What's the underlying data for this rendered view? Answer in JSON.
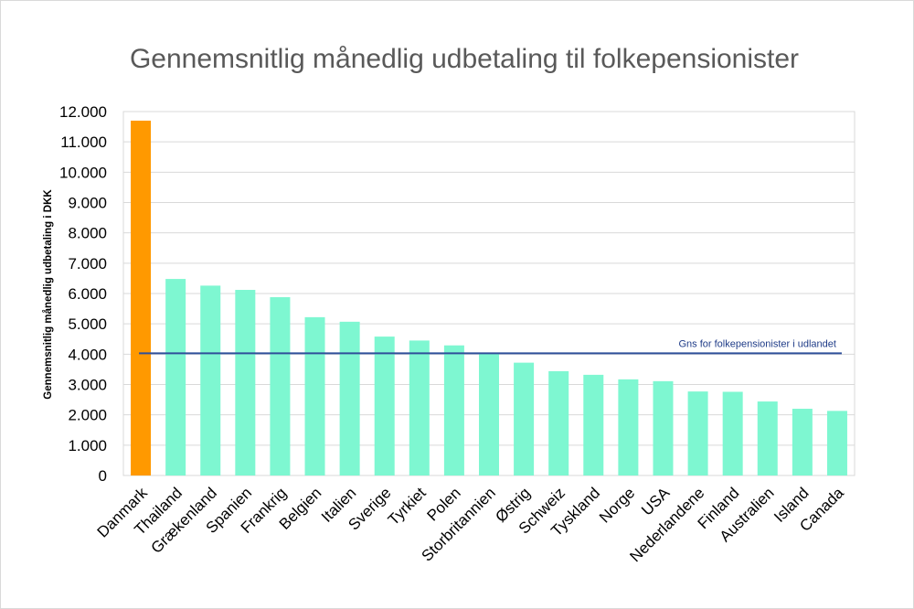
{
  "chart_data": {
    "type": "bar",
    "title": "Gennemsnitlig månedlig udbetaling til folkepensionister",
    "xlabel": "",
    "ylabel": "Gennemsnitlig månedlig udbetaling i DKK",
    "ylim": [
      0,
      12000
    ],
    "yticks": [
      0,
      1000,
      2000,
      3000,
      4000,
      5000,
      6000,
      7000,
      8000,
      9000,
      10000,
      11000,
      12000
    ],
    "ytick_labels": [
      "0",
      "1.000",
      "2.000",
      "3.000",
      "4.000",
      "5.000",
      "6.000",
      "7.000",
      "8.000",
      "9.000",
      "10.000",
      "11.000",
      "12.000"
    ],
    "grid": true,
    "categories": [
      "Danmark",
      "Thailand",
      "Grækenland",
      "Spanien",
      "Frankrig",
      "Belgien",
      "Italien",
      "Sverige",
      "Tyrkiet",
      "Polen",
      "Storbritannien",
      "Østrig",
      "Schweiz",
      "Tyskland",
      "Norge",
      "USA",
      "Nederlandene",
      "Finland",
      "Australien",
      "Island",
      "Canada"
    ],
    "values": [
      11700,
      6480,
      6260,
      6120,
      5880,
      5220,
      5070,
      4580,
      4450,
      4290,
      4040,
      3720,
      3440,
      3320,
      3170,
      3110,
      2770,
      2760,
      2440,
      2200,
      2130
    ],
    "highlight_index": 0,
    "colors": {
      "highlight": "#ff9900",
      "default": "#7ef7d1",
      "reference_line": "#2f4f9a"
    },
    "reference_line": {
      "value": 4030,
      "label": "Gns for folkepensionister i udlandet"
    }
  }
}
